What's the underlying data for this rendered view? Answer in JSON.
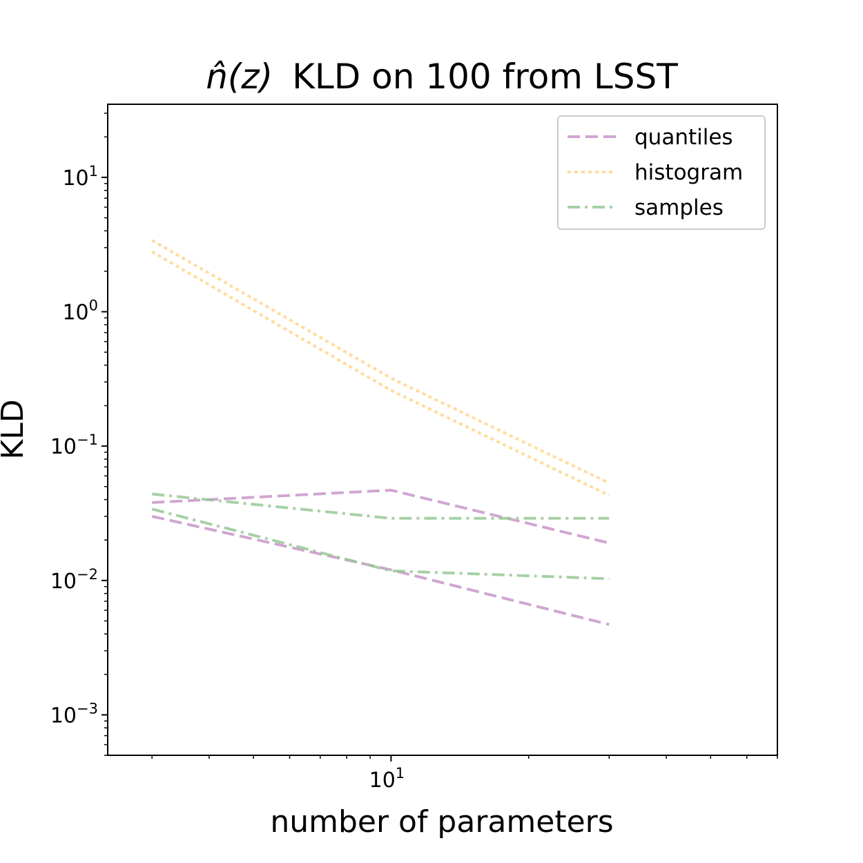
{
  "chart_data": {
    "type": "line",
    "title": "KLD on 100 from LSST",
    "title_prefix": "n̂(z)",
    "xlabel": "number of parameters",
    "ylabel": "KLD",
    "xscale": "log",
    "yscale": "log",
    "xlim": [
      2.4,
      70
    ],
    "ylim": [
      0.0005,
      35
    ],
    "xticks": [
      {
        "base": "10",
        "exp": "1",
        "value": 10
      }
    ],
    "yticks": [
      {
        "base": "10",
        "exp": "1",
        "value": 10
      },
      {
        "base": "10",
        "exp": "0",
        "value": 1
      },
      {
        "base": "10",
        "exp": "−1",
        "value": 0.1
      },
      {
        "base": "10",
        "exp": "−2",
        "value": 0.01
      },
      {
        "base": "10",
        "exp": "−3",
        "value": 0.001
      }
    ],
    "grid": false,
    "legend_position": "top-right",
    "legend": [
      {
        "label": "quantiles",
        "color": "#c896c8",
        "dash": "dashed"
      },
      {
        "label": "histogram",
        "color": "#ffd68a",
        "dash": "dotted"
      },
      {
        "label": "samples",
        "color": "#96c896",
        "dash": "dashdot"
      }
    ],
    "series": [
      {
        "name": "quantiles",
        "group": "quantiles",
        "color": "#c896c8",
        "dash": "dashed",
        "x": [
          3,
          10,
          30
        ],
        "y": [
          0.038,
          0.047,
          0.019
        ]
      },
      {
        "group": "quantiles",
        "color": "#c896c8",
        "dash": "dashed",
        "x": [
          3,
          10,
          30
        ],
        "y": [
          0.03,
          0.012,
          0.0047
        ]
      },
      {
        "name": "histogram",
        "group": "histogram",
        "color": "#ffd68a",
        "dash": "dotted",
        "x": [
          3,
          10,
          30
        ],
        "y": [
          3.4,
          0.32,
          0.053
        ]
      },
      {
        "group": "histogram",
        "color": "#ffd68a",
        "dash": "dotted",
        "x": [
          3,
          10,
          30
        ],
        "y": [
          2.8,
          0.26,
          0.043
        ]
      },
      {
        "name": "samples",
        "group": "samples",
        "color": "#96c896",
        "dash": "dashdot",
        "x": [
          3,
          10,
          30
        ],
        "y": [
          0.044,
          0.029,
          0.029
        ]
      },
      {
        "group": "samples",
        "color": "#96c896",
        "dash": "dashdot",
        "x": [
          3,
          10,
          30
        ],
        "y": [
          0.034,
          0.0118,
          0.0103
        ]
      }
    ]
  }
}
